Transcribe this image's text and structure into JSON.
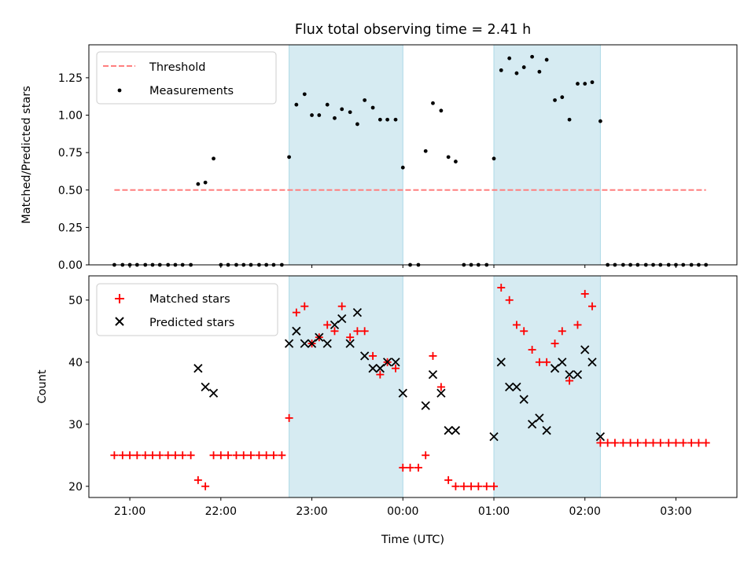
{
  "figure": {
    "title": "Flux total observing time = 2.41 h",
    "xlabel": "Time (UTC)",
    "xticks": [
      {
        "t": 21.0,
        "label": "21:00"
      },
      {
        "t": 22.0,
        "label": "22:00"
      },
      {
        "t": 23.0,
        "label": "23:00"
      },
      {
        "t": 24.0,
        "label": "00:00"
      },
      {
        "t": 25.0,
        "label": "01:00"
      },
      {
        "t": 26.0,
        "label": "02:00"
      },
      {
        "t": 27.0,
        "label": "03:00"
      }
    ],
    "xlim": [
      20.55,
      27.67
    ],
    "shaded_spans": [
      [
        22.75,
        24.0
      ],
      [
        25.0,
        26.17
      ]
    ],
    "shade_color": "#add8e6"
  },
  "chart_data": [
    {
      "type": "scatter",
      "ylabel": "Matched/Predicted stars",
      "ylim": [
        0.0,
        1.47
      ],
      "yticks": [
        0.0,
        0.25,
        0.5,
        0.75,
        1.0,
        1.25
      ],
      "ytick_labels": [
        "0.00",
        "0.25",
        "0.50",
        "0.75",
        "1.00",
        "1.25"
      ],
      "legend": {
        "placement": "top-left",
        "entries": [
          "Threshold",
          "Measurements"
        ]
      },
      "threshold": {
        "name": "Threshold",
        "value": 0.5,
        "x_range": [
          20.83,
          27.33
        ],
        "color": "#ff7f7f"
      },
      "series": [
        {
          "name": "Measurements",
          "color": "#000000",
          "points": [
            [
              20.83,
              0
            ],
            [
              20.92,
              0
            ],
            [
              21.0,
              0
            ],
            [
              21.08,
              0
            ],
            [
              21.17,
              0
            ],
            [
              21.25,
              0
            ],
            [
              21.33,
              0
            ],
            [
              21.42,
              0
            ],
            [
              21.5,
              0
            ],
            [
              21.58,
              0
            ],
            [
              21.67,
              0
            ],
            [
              21.75,
              0.54
            ],
            [
              21.83,
              0.55
            ],
            [
              21.92,
              0.71
            ],
            [
              22.0,
              0
            ],
            [
              22.08,
              0
            ],
            [
              22.17,
              0
            ],
            [
              22.25,
              0
            ],
            [
              22.33,
              0
            ],
            [
              22.42,
              0
            ],
            [
              22.5,
              0
            ],
            [
              22.58,
              0
            ],
            [
              22.67,
              0
            ],
            [
              22.75,
              0.72
            ],
            [
              22.83,
              1.07
            ],
            [
              22.92,
              1.14
            ],
            [
              23.0,
              1.0
            ],
            [
              23.08,
              1.0
            ],
            [
              23.17,
              1.07
            ],
            [
              23.25,
              0.98
            ],
            [
              23.33,
              1.04
            ],
            [
              23.42,
              1.02
            ],
            [
              23.5,
              0.94
            ],
            [
              23.58,
              1.1
            ],
            [
              23.67,
              1.05
            ],
            [
              23.75,
              0.97
            ],
            [
              23.83,
              0.97
            ],
            [
              23.92,
              0.97
            ],
            [
              24.0,
              0.65
            ],
            [
              24.08,
              0
            ],
            [
              24.17,
              0
            ],
            [
              24.25,
              0.76
            ],
            [
              24.33,
              1.08
            ],
            [
              24.42,
              1.03
            ],
            [
              24.5,
              0.72
            ],
            [
              24.58,
              0.69
            ],
            [
              24.67,
              0
            ],
            [
              24.75,
              0
            ],
            [
              24.83,
              0
            ],
            [
              24.92,
              0
            ],
            [
              25.0,
              0.71
            ],
            [
              25.08,
              1.3
            ],
            [
              25.17,
              1.38
            ],
            [
              25.25,
              1.28
            ],
            [
              25.33,
              1.32
            ],
            [
              25.42,
              1.39
            ],
            [
              25.5,
              1.29
            ],
            [
              25.58,
              1.37
            ],
            [
              25.67,
              1.1
            ],
            [
              25.75,
              1.12
            ],
            [
              25.83,
              0.97
            ],
            [
              25.92,
              1.21
            ],
            [
              26.0,
              1.21
            ],
            [
              26.08,
              1.22
            ],
            [
              26.17,
              0.96
            ],
            [
              26.25,
              0
            ],
            [
              26.33,
              0
            ],
            [
              26.42,
              0
            ],
            [
              26.5,
              0
            ],
            [
              26.58,
              0
            ],
            [
              26.67,
              0
            ],
            [
              26.75,
              0
            ],
            [
              26.83,
              0
            ],
            [
              26.92,
              0
            ],
            [
              27.0,
              0
            ],
            [
              27.08,
              0
            ],
            [
              27.17,
              0
            ],
            [
              27.25,
              0
            ],
            [
              27.33,
              0
            ]
          ]
        }
      ]
    },
    {
      "type": "scatter",
      "ylabel": "Count",
      "ylim": [
        18.2,
        53.9
      ],
      "yticks": [
        20,
        30,
        40,
        50
      ],
      "ytick_labels": [
        "20",
        "30",
        "40",
        "50"
      ],
      "legend": {
        "placement": "top-left",
        "entries": [
          "Matched stars",
          "Predicted stars"
        ]
      },
      "series": [
        {
          "name": "Matched stars",
          "marker": "plus",
          "color": "#ff0000",
          "points": [
            [
              20.83,
              25
            ],
            [
              20.92,
              25
            ],
            [
              21.0,
              25
            ],
            [
              21.08,
              25
            ],
            [
              21.17,
              25
            ],
            [
              21.25,
              25
            ],
            [
              21.33,
              25
            ],
            [
              21.42,
              25
            ],
            [
              21.5,
              25
            ],
            [
              21.58,
              25
            ],
            [
              21.67,
              25
            ],
            [
              21.75,
              21
            ],
            [
              21.83,
              20
            ],
            [
              21.92,
              25
            ],
            [
              22.0,
              25
            ],
            [
              22.08,
              25
            ],
            [
              22.17,
              25
            ],
            [
              22.25,
              25
            ],
            [
              22.33,
              25
            ],
            [
              22.42,
              25
            ],
            [
              22.5,
              25
            ],
            [
              22.58,
              25
            ],
            [
              22.67,
              25
            ],
            [
              22.75,
              31
            ],
            [
              22.83,
              48
            ],
            [
              22.92,
              49
            ],
            [
              23.0,
              43
            ],
            [
              23.08,
              44
            ],
            [
              23.17,
              46
            ],
            [
              23.25,
              45
            ],
            [
              23.33,
              49
            ],
            [
              23.42,
              44
            ],
            [
              23.5,
              45
            ],
            [
              23.58,
              45
            ],
            [
              23.67,
              41
            ],
            [
              23.75,
              38
            ],
            [
              23.83,
              40
            ],
            [
              23.92,
              39
            ],
            [
              24.0,
              23
            ],
            [
              24.08,
              23
            ],
            [
              24.17,
              23
            ],
            [
              24.25,
              25
            ],
            [
              24.33,
              41
            ],
            [
              24.42,
              36
            ],
            [
              24.5,
              21
            ],
            [
              24.58,
              20
            ],
            [
              24.67,
              20
            ],
            [
              24.75,
              20
            ],
            [
              24.83,
              20
            ],
            [
              24.92,
              20
            ],
            [
              25.0,
              20
            ],
            [
              25.08,
              52
            ],
            [
              25.17,
              50
            ],
            [
              25.25,
              46
            ],
            [
              25.33,
              45
            ],
            [
              25.42,
              42
            ],
            [
              25.5,
              40
            ],
            [
              25.58,
              40
            ],
            [
              25.67,
              43
            ],
            [
              25.75,
              45
            ],
            [
              25.83,
              37
            ],
            [
              25.92,
              46
            ],
            [
              26.0,
              51
            ],
            [
              26.08,
              49
            ],
            [
              26.17,
              27
            ],
            [
              26.25,
              27
            ],
            [
              26.33,
              27
            ],
            [
              26.42,
              27
            ],
            [
              26.5,
              27
            ],
            [
              26.58,
              27
            ],
            [
              26.67,
              27
            ],
            [
              26.75,
              27
            ],
            [
              26.83,
              27
            ],
            [
              26.92,
              27
            ],
            [
              27.0,
              27
            ],
            [
              27.08,
              27
            ],
            [
              27.17,
              27
            ],
            [
              27.25,
              27
            ],
            [
              27.33,
              27
            ]
          ]
        },
        {
          "name": "Predicted stars",
          "marker": "x",
          "color": "#000000",
          "points": [
            [
              21.75,
              39
            ],
            [
              21.83,
              36
            ],
            [
              21.92,
              35
            ],
            [
              22.75,
              43
            ],
            [
              22.83,
              45
            ],
            [
              22.92,
              43
            ],
            [
              23.0,
              43
            ],
            [
              23.08,
              44
            ],
            [
              23.17,
              43
            ],
            [
              23.25,
              46
            ],
            [
              23.33,
              47
            ],
            [
              23.42,
              43
            ],
            [
              23.5,
              48
            ],
            [
              23.58,
              41
            ],
            [
              23.67,
              39
            ],
            [
              23.75,
              39
            ],
            [
              23.83,
              40
            ],
            [
              23.92,
              40
            ],
            [
              24.0,
              35
            ],
            [
              24.25,
              33
            ],
            [
              24.33,
              38
            ],
            [
              24.42,
              35
            ],
            [
              24.5,
              29
            ],
            [
              24.58,
              29
            ],
            [
              25.0,
              28
            ],
            [
              25.08,
              40
            ],
            [
              25.17,
              36
            ],
            [
              25.25,
              36
            ],
            [
              25.33,
              34
            ],
            [
              25.42,
              30
            ],
            [
              25.5,
              31
            ],
            [
              25.58,
              29
            ],
            [
              25.67,
              39
            ],
            [
              25.75,
              40
            ],
            [
              25.83,
              38
            ],
            [
              25.92,
              38
            ],
            [
              26.0,
              42
            ],
            [
              26.08,
              40
            ],
            [
              26.17,
              28
            ]
          ]
        }
      ]
    }
  ]
}
